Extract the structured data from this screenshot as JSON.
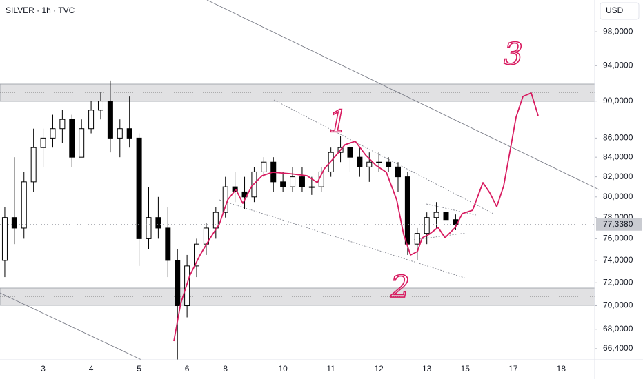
{
  "chart_data": {
    "type": "candlestick",
    "title": "SILVER · 1h · TVC",
    "currency": "USD",
    "log_scale": true,
    "up_color": "#ffffff",
    "down_color": "#000000",
    "ylim": [
      65.5,
      101.9
    ],
    "yticks": [
      {
        "value": 98,
        "label": "98,0000"
      },
      {
        "value": 94,
        "label": "94,0000"
      },
      {
        "value": 90,
        "label": "90,0000"
      },
      {
        "value": 86,
        "label": "86,0000"
      },
      {
        "value": 84,
        "label": "84,0000"
      },
      {
        "value": 82,
        "label": "82,0000"
      },
      {
        "value": 80,
        "label": "80,0000"
      },
      {
        "value": 78,
        "label": "78,0000"
      },
      {
        "value": 76,
        "label": "76,0000"
      },
      {
        "value": 74,
        "label": "74,0000"
      },
      {
        "value": 72,
        "label": "72,0000"
      },
      {
        "value": 70,
        "label": "70,0000"
      },
      {
        "value": 68,
        "label": "68,0000"
      },
      {
        "value": 66.4,
        "label": "66,4000"
      }
    ],
    "last_price": {
      "value": 77.338,
      "label": "77,3380"
    },
    "annotations": [
      "1",
      "2",
      "3"
    ],
    "categories": [
      null,
      null,
      null,
      null,
      "3",
      null,
      null,
      null,
      null,
      "4",
      null,
      null,
      null,
      null,
      "5",
      null,
      null,
      null,
      null,
      "6",
      null,
      null,
      null,
      "8",
      null,
      null,
      null,
      null,
      null,
      "10",
      null,
      null,
      null,
      null,
      "11",
      null,
      null,
      null,
      null,
      "12",
      null,
      null,
      null,
      null,
      "13",
      null,
      null,
      null,
      "15",
      null,
      null,
      null,
      null,
      "17",
      null,
      null,
      null,
      null,
      "18",
      null,
      null,
      null
    ],
    "open": [
      74,
      78,
      77,
      81.5,
      85,
      86,
      87,
      88,
      84,
      87,
      89,
      90,
      86,
      87,
      86,
      76,
      78,
      77,
      74,
      70,
      73.5,
      75.5,
      77,
      78.5,
      81,
      80.5,
      80,
      82.5,
      83.5,
      81.5,
      81,
      82,
      81,
      81,
      82.5,
      84.5,
      85,
      84,
      83,
      83.5,
      83.5,
      83,
      82,
      75.5,
      76.5,
      78,
      78.5,
      77.8,
      null,
      null,
      null,
      null,
      null,
      null,
      null,
      null,
      null,
      null,
      null,
      null,
      null,
      null
    ],
    "high": [
      79,
      84,
      82.5,
      87,
      87,
      88.5,
      89,
      88.5,
      88,
      90,
      91,
      92.3,
      88,
      90.5,
      86.5,
      81,
      80,
      79,
      75,
      74.5,
      76,
      77.5,
      79,
      82,
      82.5,
      82,
      83,
      84,
      84,
      82.5,
      83,
      83,
      82,
      83,
      85,
      86.2,
      85.5,
      85,
      84.5,
      84.5,
      84,
      83.5,
      82.5,
      77,
      78.5,
      79.5,
      79.3,
      78.3,
      null,
      null,
      null,
      null,
      null,
      null,
      null,
      null,
      null,
      null,
      null,
      null,
      null,
      null
    ],
    "low": [
      72.5,
      75.5,
      76,
      80.5,
      83,
      85,
      85.5,
      83,
      84,
      86.5,
      88,
      84.5,
      84,
      85,
      73.5,
      75,
      76,
      72.5,
      65.5,
      69,
      72.5,
      74.5,
      76,
      78,
      79.5,
      78.8,
      79.5,
      82,
      80.5,
      80.5,
      80.5,
      80.5,
      80.2,
      80.5,
      82,
      83.5,
      82.5,
      82,
      81.5,
      82.5,
      82.5,
      80.5,
      74.5,
      74,
      75.5,
      77,
      76.8,
      76.8,
      null,
      null,
      null,
      null,
      null,
      null,
      null,
      null,
      null,
      null,
      null,
      null,
      null,
      null
    ],
    "close": [
      78,
      77,
      81.5,
      85,
      86,
      87,
      88,
      84,
      87,
      89,
      90,
      86,
      87,
      86,
      76,
      78,
      77,
      74,
      70,
      73.5,
      75.5,
      77,
      78.5,
      81,
      80.5,
      80,
      82.5,
      83.5,
      81.5,
      81,
      82,
      81,
      81,
      82.5,
      84.5,
      85,
      84,
      83,
      83.5,
      83.5,
      83,
      82,
      75.5,
      76.5,
      78,
      78.5,
      77.8,
      77.34,
      null,
      null,
      null,
      null,
      null,
      null,
      null,
      null,
      null,
      null,
      null,
      null,
      null,
      null
    ]
  }
}
